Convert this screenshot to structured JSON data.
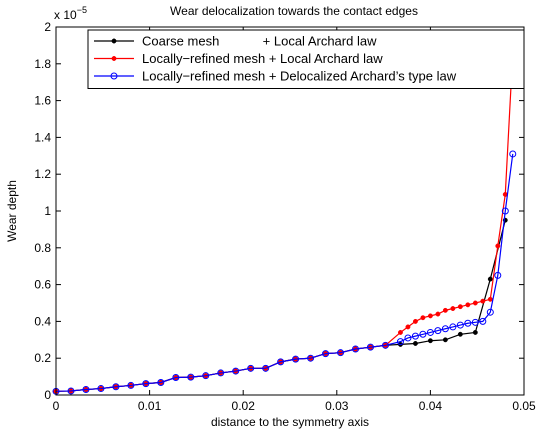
{
  "chart_data": {
    "type": "line",
    "title": "Wear delocalization towards the contact edges",
    "xlabel": "distance to the symmetry axis",
    "ylabel": "Wear depth",
    "y_multiplier_label": "x 10",
    "y_multiplier_exponent": "−5",
    "xlim": [
      0,
      0.05
    ],
    "ylim": [
      0,
      2
    ],
    "xticks": [
      0,
      0.01,
      0.02,
      0.03,
      0.04,
      0.05
    ],
    "xtick_labels": [
      "0",
      "0.01",
      "0.02",
      "0.03",
      "0.04",
      "0.05"
    ],
    "yticks": [
      0,
      0.2,
      0.4,
      0.6,
      0.8,
      1,
      1.2,
      1.4,
      1.6,
      1.8,
      2
    ],
    "ytick_labels": [
      "0",
      "0.2",
      "0.4",
      "0.6",
      "0.8",
      "1",
      "1.2",
      "1.4",
      "1.6",
      "1.8",
      "2"
    ],
    "grid": false,
    "legend_position": "top",
    "series": [
      {
        "name": "Coarse mesh            + Local Archard law",
        "color": "#000000",
        "marker": "dot",
        "x": [
          0,
          0.0016,
          0.0032,
          0.0048,
          0.0064,
          0.008,
          0.0096,
          0.0112,
          0.0128,
          0.0144,
          0.016,
          0.0176,
          0.0192,
          0.0208,
          0.0224,
          0.024,
          0.0256,
          0.0272,
          0.0288,
          0.0304,
          0.032,
          0.0336,
          0.0352,
          0.0368,
          0.0384,
          0.04,
          0.0416,
          0.0432,
          0.0448,
          0.0464,
          0.048
        ],
        "y": [
          0.02,
          0.022,
          0.03,
          0.035,
          0.045,
          0.052,
          0.062,
          0.068,
          0.095,
          0.097,
          0.105,
          0.12,
          0.13,
          0.145,
          0.145,
          0.18,
          0.195,
          0.2,
          0.225,
          0.23,
          0.25,
          0.26,
          0.27,
          0.275,
          0.28,
          0.295,
          0.3,
          0.33,
          0.34,
          0.63,
          0.95
        ]
      },
      {
        "name": "Locally−refined mesh + Local Archard law",
        "color": "#ff0000",
        "marker": "dot",
        "x": [
          0,
          0.0016,
          0.0032,
          0.0048,
          0.0064,
          0.008,
          0.0096,
          0.0112,
          0.0128,
          0.0144,
          0.016,
          0.0176,
          0.0192,
          0.0208,
          0.0224,
          0.024,
          0.0256,
          0.0272,
          0.0288,
          0.0304,
          0.032,
          0.0336,
          0.0352,
          0.0368,
          0.0376,
          0.0384,
          0.0392,
          0.04,
          0.0408,
          0.0416,
          0.0424,
          0.0432,
          0.044,
          0.0448,
          0.0456,
          0.0464,
          0.0472,
          0.048,
          0.0488
        ],
        "y": [
          0.02,
          0.022,
          0.03,
          0.035,
          0.045,
          0.052,
          0.062,
          0.068,
          0.095,
          0.097,
          0.105,
          0.12,
          0.13,
          0.145,
          0.145,
          0.18,
          0.195,
          0.2,
          0.225,
          0.23,
          0.25,
          0.26,
          0.27,
          0.34,
          0.37,
          0.4,
          0.42,
          0.43,
          0.44,
          0.46,
          0.47,
          0.48,
          0.49,
          0.5,
          0.51,
          0.52,
          0.81,
          1.09,
          1.86
        ]
      },
      {
        "name": "Locally−refined mesh + Delocalized Archard’s type law",
        "color": "#0000ff",
        "marker": "circle",
        "x": [
          0,
          0.0016,
          0.0032,
          0.0048,
          0.0064,
          0.008,
          0.0096,
          0.0112,
          0.0128,
          0.0144,
          0.016,
          0.0176,
          0.0192,
          0.0208,
          0.0224,
          0.024,
          0.0256,
          0.0272,
          0.0288,
          0.0304,
          0.032,
          0.0336,
          0.0352,
          0.0368,
          0.0376,
          0.0384,
          0.0392,
          0.04,
          0.0408,
          0.0416,
          0.0424,
          0.0432,
          0.044,
          0.0448,
          0.0456,
          0.0464,
          0.0472,
          0.048,
          0.0488
        ],
        "y": [
          0.02,
          0.022,
          0.03,
          0.035,
          0.045,
          0.052,
          0.062,
          0.068,
          0.095,
          0.097,
          0.105,
          0.12,
          0.13,
          0.145,
          0.145,
          0.18,
          0.195,
          0.2,
          0.225,
          0.23,
          0.25,
          0.26,
          0.27,
          0.29,
          0.31,
          0.32,
          0.33,
          0.34,
          0.35,
          0.36,
          0.37,
          0.38,
          0.39,
          0.395,
          0.4,
          0.45,
          0.65,
          1.0,
          1.31
        ]
      }
    ]
  }
}
